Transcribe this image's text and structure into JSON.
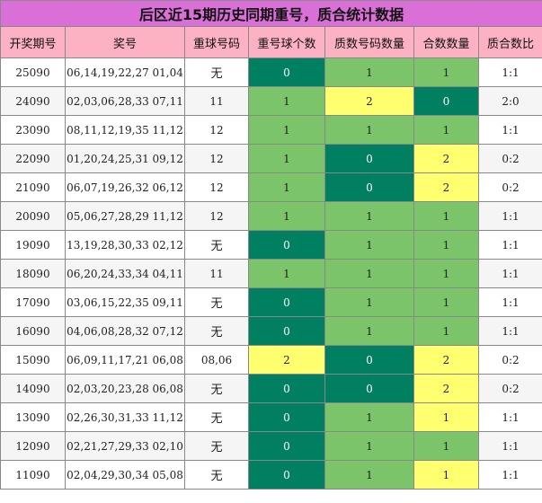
{
  "title": "后区近15期历史同期重号，质合统计数据",
  "headers": [
    "开奖期号",
    "奖号",
    "重球号码",
    "重号球个数",
    "质数号码数量",
    "合数数量",
    "质合数比"
  ],
  "colors": {
    "dark": "#008060",
    "light": "#7cc46a",
    "yellow": "#ffff70",
    "title_bg": "#da6fd7",
    "header_bg": "#fcb2c2"
  },
  "rows": [
    {
      "period": "25090",
      "numbers": "06,14,19,22,27 01,04",
      "repeat": "无",
      "repeat_count": "0",
      "prime_count": "1",
      "composite_count": "1",
      "ratio": "1:1",
      "c1": "dark",
      "c2": "light",
      "c3": "light"
    },
    {
      "period": "24090",
      "numbers": "02,03,06,28,33 07,11",
      "repeat": "11",
      "repeat_count": "1",
      "prime_count": "2",
      "composite_count": "0",
      "ratio": "2:0",
      "c1": "light",
      "c2": "yellow",
      "c3": "dark"
    },
    {
      "period": "23090",
      "numbers": "08,11,12,19,35 11,12",
      "repeat": "12",
      "repeat_count": "1",
      "prime_count": "1",
      "composite_count": "1",
      "ratio": "1:1",
      "c1": "light",
      "c2": "light",
      "c3": "light"
    },
    {
      "period": "22090",
      "numbers": "01,20,24,25,31 09,12",
      "repeat": "12",
      "repeat_count": "1",
      "prime_count": "0",
      "composite_count": "2",
      "ratio": "0:2",
      "c1": "light",
      "c2": "dark",
      "c3": "yellow"
    },
    {
      "period": "21090",
      "numbers": "06,07,19,26,32 06,12",
      "repeat": "12",
      "repeat_count": "1",
      "prime_count": "0",
      "composite_count": "2",
      "ratio": "0:2",
      "c1": "light",
      "c2": "dark",
      "c3": "yellow"
    },
    {
      "period": "20090",
      "numbers": "05,06,27,28,29 11,12",
      "repeat": "12",
      "repeat_count": "1",
      "prime_count": "1",
      "composite_count": "1",
      "ratio": "1:1",
      "c1": "light",
      "c2": "light",
      "c3": "light"
    },
    {
      "period": "19090",
      "numbers": "13,19,28,30,33 02,12",
      "repeat": "无",
      "repeat_count": "0",
      "prime_count": "1",
      "composite_count": "1",
      "ratio": "1:1",
      "c1": "dark",
      "c2": "light",
      "c3": "light"
    },
    {
      "period": "18090",
      "numbers": "06,20,24,33,34 04,11",
      "repeat": "11",
      "repeat_count": "1",
      "prime_count": "1",
      "composite_count": "1",
      "ratio": "1:1",
      "c1": "light",
      "c2": "light",
      "c3": "light"
    },
    {
      "period": "17090",
      "numbers": "03,06,15,22,35 09,11",
      "repeat": "无",
      "repeat_count": "0",
      "prime_count": "1",
      "composite_count": "1",
      "ratio": "1:1",
      "c1": "dark",
      "c2": "light",
      "c3": "light"
    },
    {
      "period": "16090",
      "numbers": "04,06,08,28,32 07,12",
      "repeat": "无",
      "repeat_count": "0",
      "prime_count": "1",
      "composite_count": "1",
      "ratio": "1:1",
      "c1": "dark",
      "c2": "light",
      "c3": "light"
    },
    {
      "period": "15090",
      "numbers": "06,09,11,17,21 06,08",
      "repeat": "08,06",
      "repeat_count": "2",
      "prime_count": "0",
      "composite_count": "2",
      "ratio": "0:2",
      "c1": "yellow",
      "c2": "dark",
      "c3": "yellow"
    },
    {
      "period": "14090",
      "numbers": "02,03,20,23,28 06,08",
      "repeat": "无",
      "repeat_count": "0",
      "prime_count": "0",
      "composite_count": "2",
      "ratio": "0:2",
      "c1": "dark",
      "c2": "dark",
      "c3": "yellow"
    },
    {
      "period": "13090",
      "numbers": "02,26,30,31,33 11,12",
      "repeat": "无",
      "repeat_count": "0",
      "prime_count": "1",
      "composite_count": "1",
      "ratio": "1:1",
      "c1": "dark",
      "c2": "light",
      "c3": "yellow"
    },
    {
      "period": "12090",
      "numbers": "02,21,27,29,33 02,10",
      "repeat": "无",
      "repeat_count": "0",
      "prime_count": "1",
      "composite_count": "1",
      "ratio": "1:1",
      "c1": "dark",
      "c2": "light",
      "c3": "light"
    },
    {
      "period": "11090",
      "numbers": "02,04,29,30,34 05,08",
      "repeat": "无",
      "repeat_count": "0",
      "prime_count": "1",
      "composite_count": "1",
      "ratio": "1:1",
      "c1": "dark",
      "c2": "light",
      "c3": "yellow"
    }
  ]
}
